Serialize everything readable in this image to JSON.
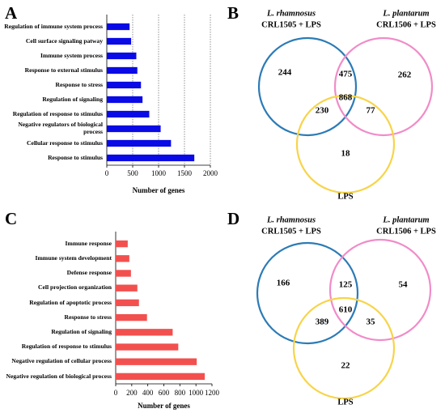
{
  "chart_data": [
    {
      "type": "bar",
      "orientation": "horizontal",
      "panel": "A",
      "categories": [
        "Regulation of immune system process",
        "Cell surface signaling patway",
        "Immune system process",
        "Response to external stimulus",
        "Response to stress",
        "Regulation of signaling",
        "Regulation of response to stimulus",
        "Negative regulators of biological process",
        "Cellular response to stimulus",
        "Response to stimulus"
      ],
      "values": [
        440,
        470,
        570,
        590,
        660,
        690,
        820,
        1040,
        1240,
        1690
      ],
      "color": "#0a0ae6",
      "x_label": "Number of genes",
      "xlim": [
        0,
        2000
      ],
      "xticks": [
        0,
        500,
        1000,
        1500,
        2000
      ],
      "grid": true
    },
    {
      "type": "venn",
      "panel": "B",
      "sets": [
        {
          "name": "L. rhamnosus",
          "label": "CRL1505 + LPS",
          "color": "#2c7bb6"
        },
        {
          "name": "L. plantarum",
          "label": "CRL1506 + LPS",
          "color": "#f08cc8"
        },
        {
          "name": "LPS",
          "color": "#f7d44a"
        }
      ],
      "regions": {
        "1": 244,
        "1&2": 475,
        "2": 262,
        "1&3": 230,
        "1&2&3": 868,
        "2&3": 77,
        "3": 18
      }
    },
    {
      "type": "bar",
      "orientation": "horizontal",
      "panel": "C",
      "categories": [
        "Immune response",
        "Immune system development",
        "Defense response",
        "Cell projection organization",
        "Regulation of apoptotic process",
        "Response to stress",
        "Regulation of signaling",
        "Regulation of response to stimulus",
        "Negative regulation of cellular process",
        "Negative regulation of biological process"
      ],
      "values": [
        150,
        170,
        190,
        270,
        290,
        390,
        710,
        780,
        1010,
        1110
      ],
      "color": "#f2504e",
      "x_label": "Number of genes",
      "xlim": [
        0,
        1200
      ],
      "xticks": [
        0,
        200,
        400,
        600,
        800,
        1000,
        1200
      ],
      "grid": false
    },
    {
      "type": "venn",
      "panel": "D",
      "sets": [
        {
          "name": "L. rhamnosus",
          "label": "CRL1505 + LPS",
          "color": "#2c7bb6"
        },
        {
          "name": "L. plantarum",
          "label": "CRL1506 + LPS",
          "color": "#f08cc8"
        },
        {
          "name": "LPS",
          "color": "#f7d44a"
        }
      ],
      "regions": {
        "1": 166,
        "1&2": 125,
        "2": 54,
        "1&3": 389,
        "1&2&3": 610,
        "2&3": 35,
        "3": 22
      }
    }
  ]
}
